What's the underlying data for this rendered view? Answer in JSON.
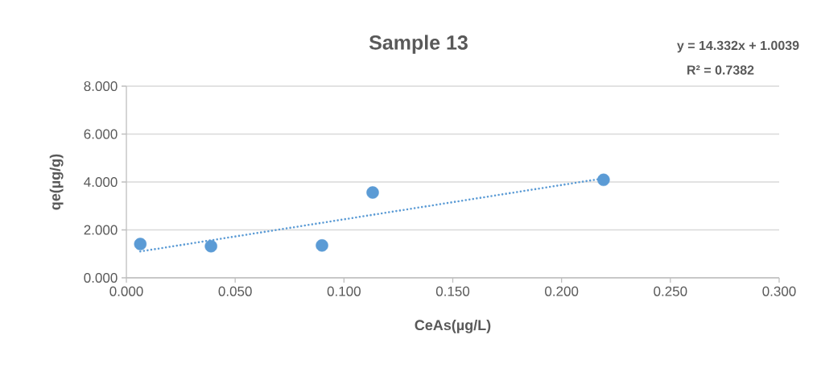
{
  "chart_data": {
    "type": "scatter",
    "title": "Sample 13",
    "xlabel": "CeAs(µg/L)",
    "ylabel": "qe(µg/g)",
    "annotations": [
      "y = 14.332x + 1.0039",
      "R² = 0.7382"
    ],
    "xlim": [
      0,
      0.3
    ],
    "ylim": [
      0,
      8
    ],
    "xticks": [
      {
        "value": 0,
        "label": "0.000"
      },
      {
        "value": 0.05,
        "label": "0.050"
      },
      {
        "value": 0.1,
        "label": "0.100"
      },
      {
        "value": 0.15,
        "label": "0.150"
      },
      {
        "value": 0.2,
        "label": "0.200"
      },
      {
        "value": 0.25,
        "label": "0.250"
      },
      {
        "value": 0.3,
        "label": "0.300"
      }
    ],
    "yticks": [
      {
        "value": 0,
        "label": "0.000"
      },
      {
        "value": 2,
        "label": "2.000"
      },
      {
        "value": 4,
        "label": "4.000"
      },
      {
        "value": 6,
        "label": "6.000"
      },
      {
        "value": 8,
        "label": "8.000"
      }
    ],
    "grid": "y",
    "series": [
      {
        "type": "scatter",
        "color": "#5b9bd5",
        "marker": "circle",
        "x": [
          0.0064,
          0.0389,
          0.0899,
          0.1132,
          0.2193
        ],
        "values": [
          1.41,
          1.32,
          1.35,
          3.56,
          4.09
        ]
      },
      {
        "type": "line",
        "color": "#5b9bd5",
        "marker": "none",
        "line_style": "dotted",
        "x": [
          0.0064,
          0.2193
        ],
        "values": [
          1.1,
          4.15
        ]
      }
    ]
  }
}
